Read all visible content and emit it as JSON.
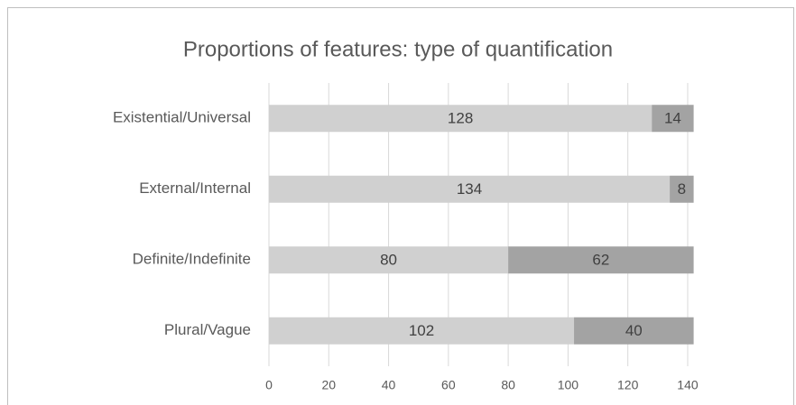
{
  "chart_data": {
    "type": "stacked_bar_horizontal",
    "title": "Proportions of features: type of quantification",
    "categories": [
      "Existential/Universal",
      "External/Internal",
      "Definite/Indefinite",
      "Plural/Vague"
    ],
    "series": [
      {
        "color": "#d0d0d0",
        "values": [
          128,
          134,
          80,
          102
        ]
      },
      {
        "color": "#a3a3a3",
        "values": [
          14,
          8,
          62,
          40
        ]
      }
    ],
    "xlim": [
      0,
      142
    ],
    "xticks": [
      0,
      20,
      40,
      60,
      80,
      100,
      120,
      140
    ],
    "grid": true
  }
}
